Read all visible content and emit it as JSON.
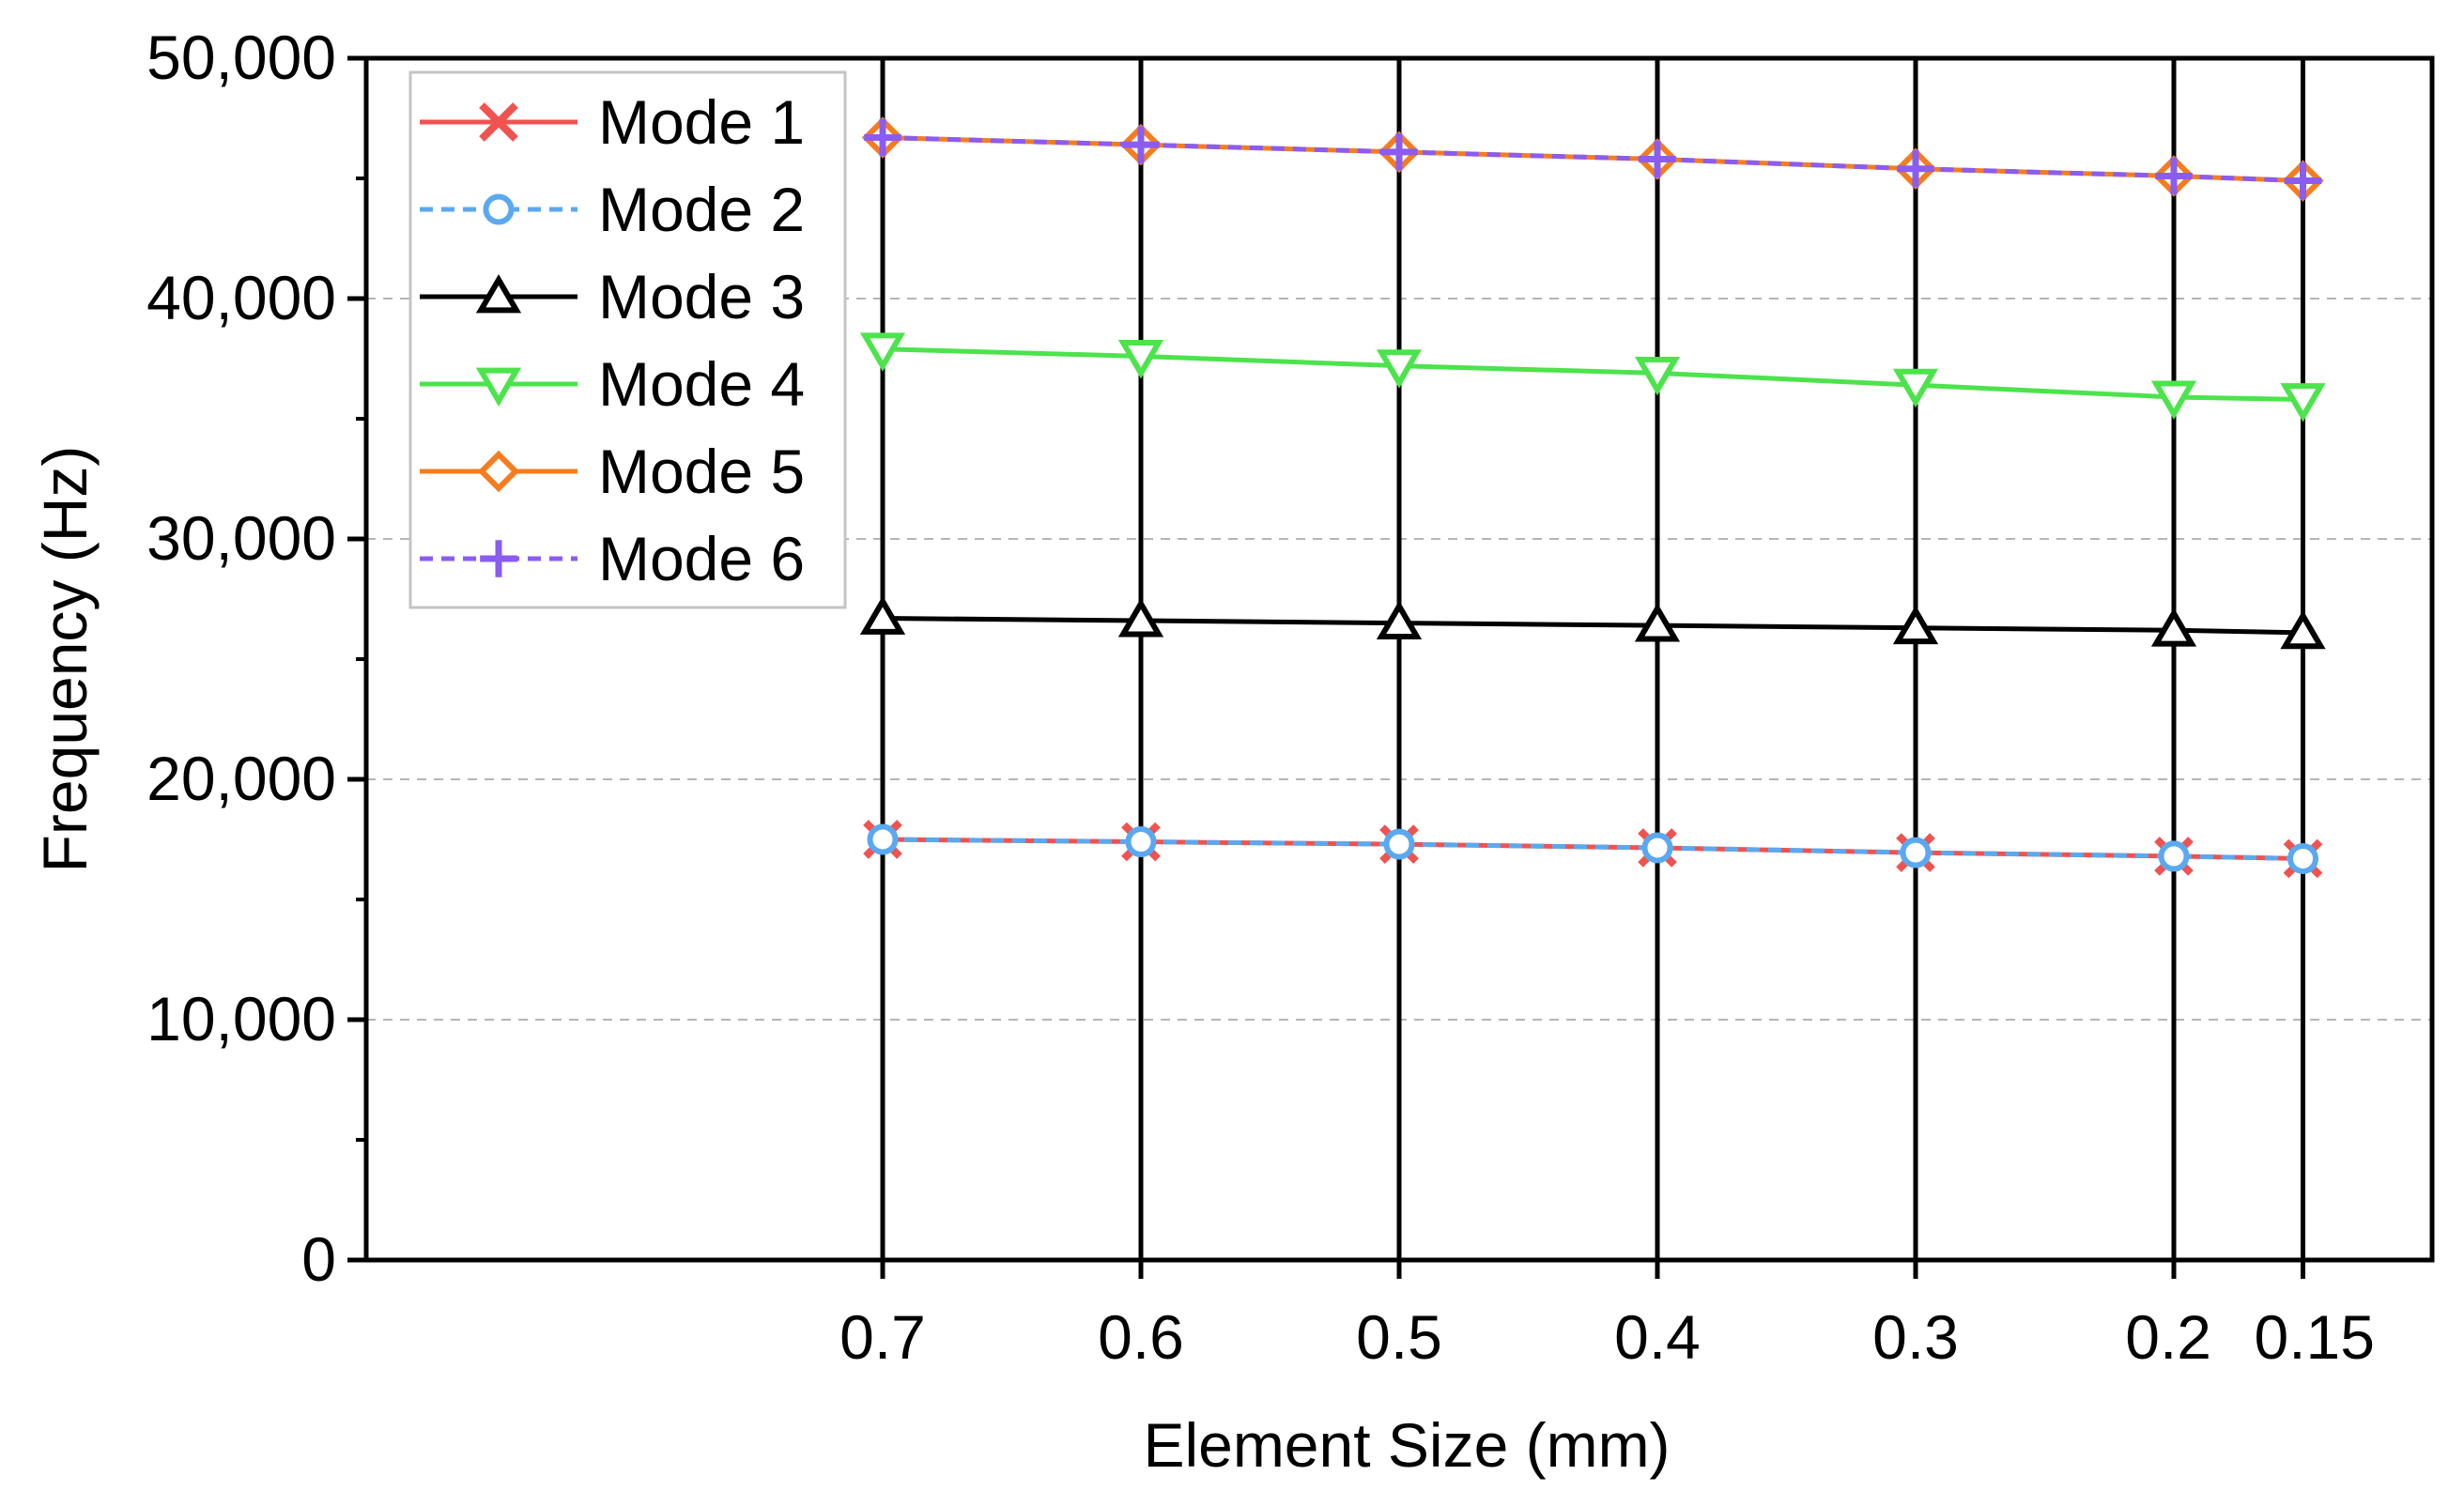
{
  "chart_data": {
    "type": "line",
    "title": "",
    "xlabel": "Element Size (mm)",
    "ylabel": "Frequency (Hz)",
    "x": [
      0.7,
      0.6,
      0.5,
      0.4,
      0.3,
      0.2,
      0.15
    ],
    "x_tick_labels": [
      "0.7",
      "0.6",
      "0.5",
      "0.4",
      "0.3",
      "0.2",
      "0.15"
    ],
    "x_direction": "reversed",
    "xlim": [
      0.9,
      0.1
    ],
    "ylim": [
      0,
      50000
    ],
    "y_ticks": [
      0,
      10000,
      20000,
      30000,
      40000,
      50000
    ],
    "y_tick_labels": [
      "0",
      "10,000",
      "20,000",
      "30,000",
      "40,000",
      "50,000"
    ],
    "grid": "horizontal dashed",
    "vertical_drop_lines": true,
    "legend_position": "top-left",
    "series": [
      {
        "name": "Mode 1",
        "color": "#ef5350",
        "dash": "solid",
        "marker": "x",
        "values": [
          17500,
          17400,
          17300,
          17150,
          16950,
          16800,
          16700
        ]
      },
      {
        "name": "Mode 2",
        "color": "#5aa9f0",
        "dash": "dashed",
        "marker": "circle",
        "values": [
          17500,
          17400,
          17300,
          17150,
          16950,
          16800,
          16700
        ]
      },
      {
        "name": "Mode 3",
        "color": "#000000",
        "dash": "solid",
        "marker": "triangle-up",
        "values": [
          26700,
          26600,
          26500,
          26400,
          26300,
          26200,
          26100
        ]
      },
      {
        "name": "Mode 4",
        "color": "#4ce34c",
        "dash": "solid",
        "marker": "triangle-down",
        "values": [
          37900,
          37600,
          37200,
          36900,
          36400,
          35900,
          35800
        ]
      },
      {
        "name": "Mode 5",
        "color": "#f57c1f",
        "dash": "solid",
        "marker": "diamond",
        "values": [
          46700,
          46400,
          46100,
          45800,
          45400,
          45100,
          44900
        ]
      },
      {
        "name": "Mode 6",
        "color": "#8a5cf0",
        "dash": "dashed",
        "marker": "plus",
        "values": [
          46700,
          46400,
          46100,
          45800,
          45400,
          45100,
          44900
        ]
      }
    ]
  }
}
